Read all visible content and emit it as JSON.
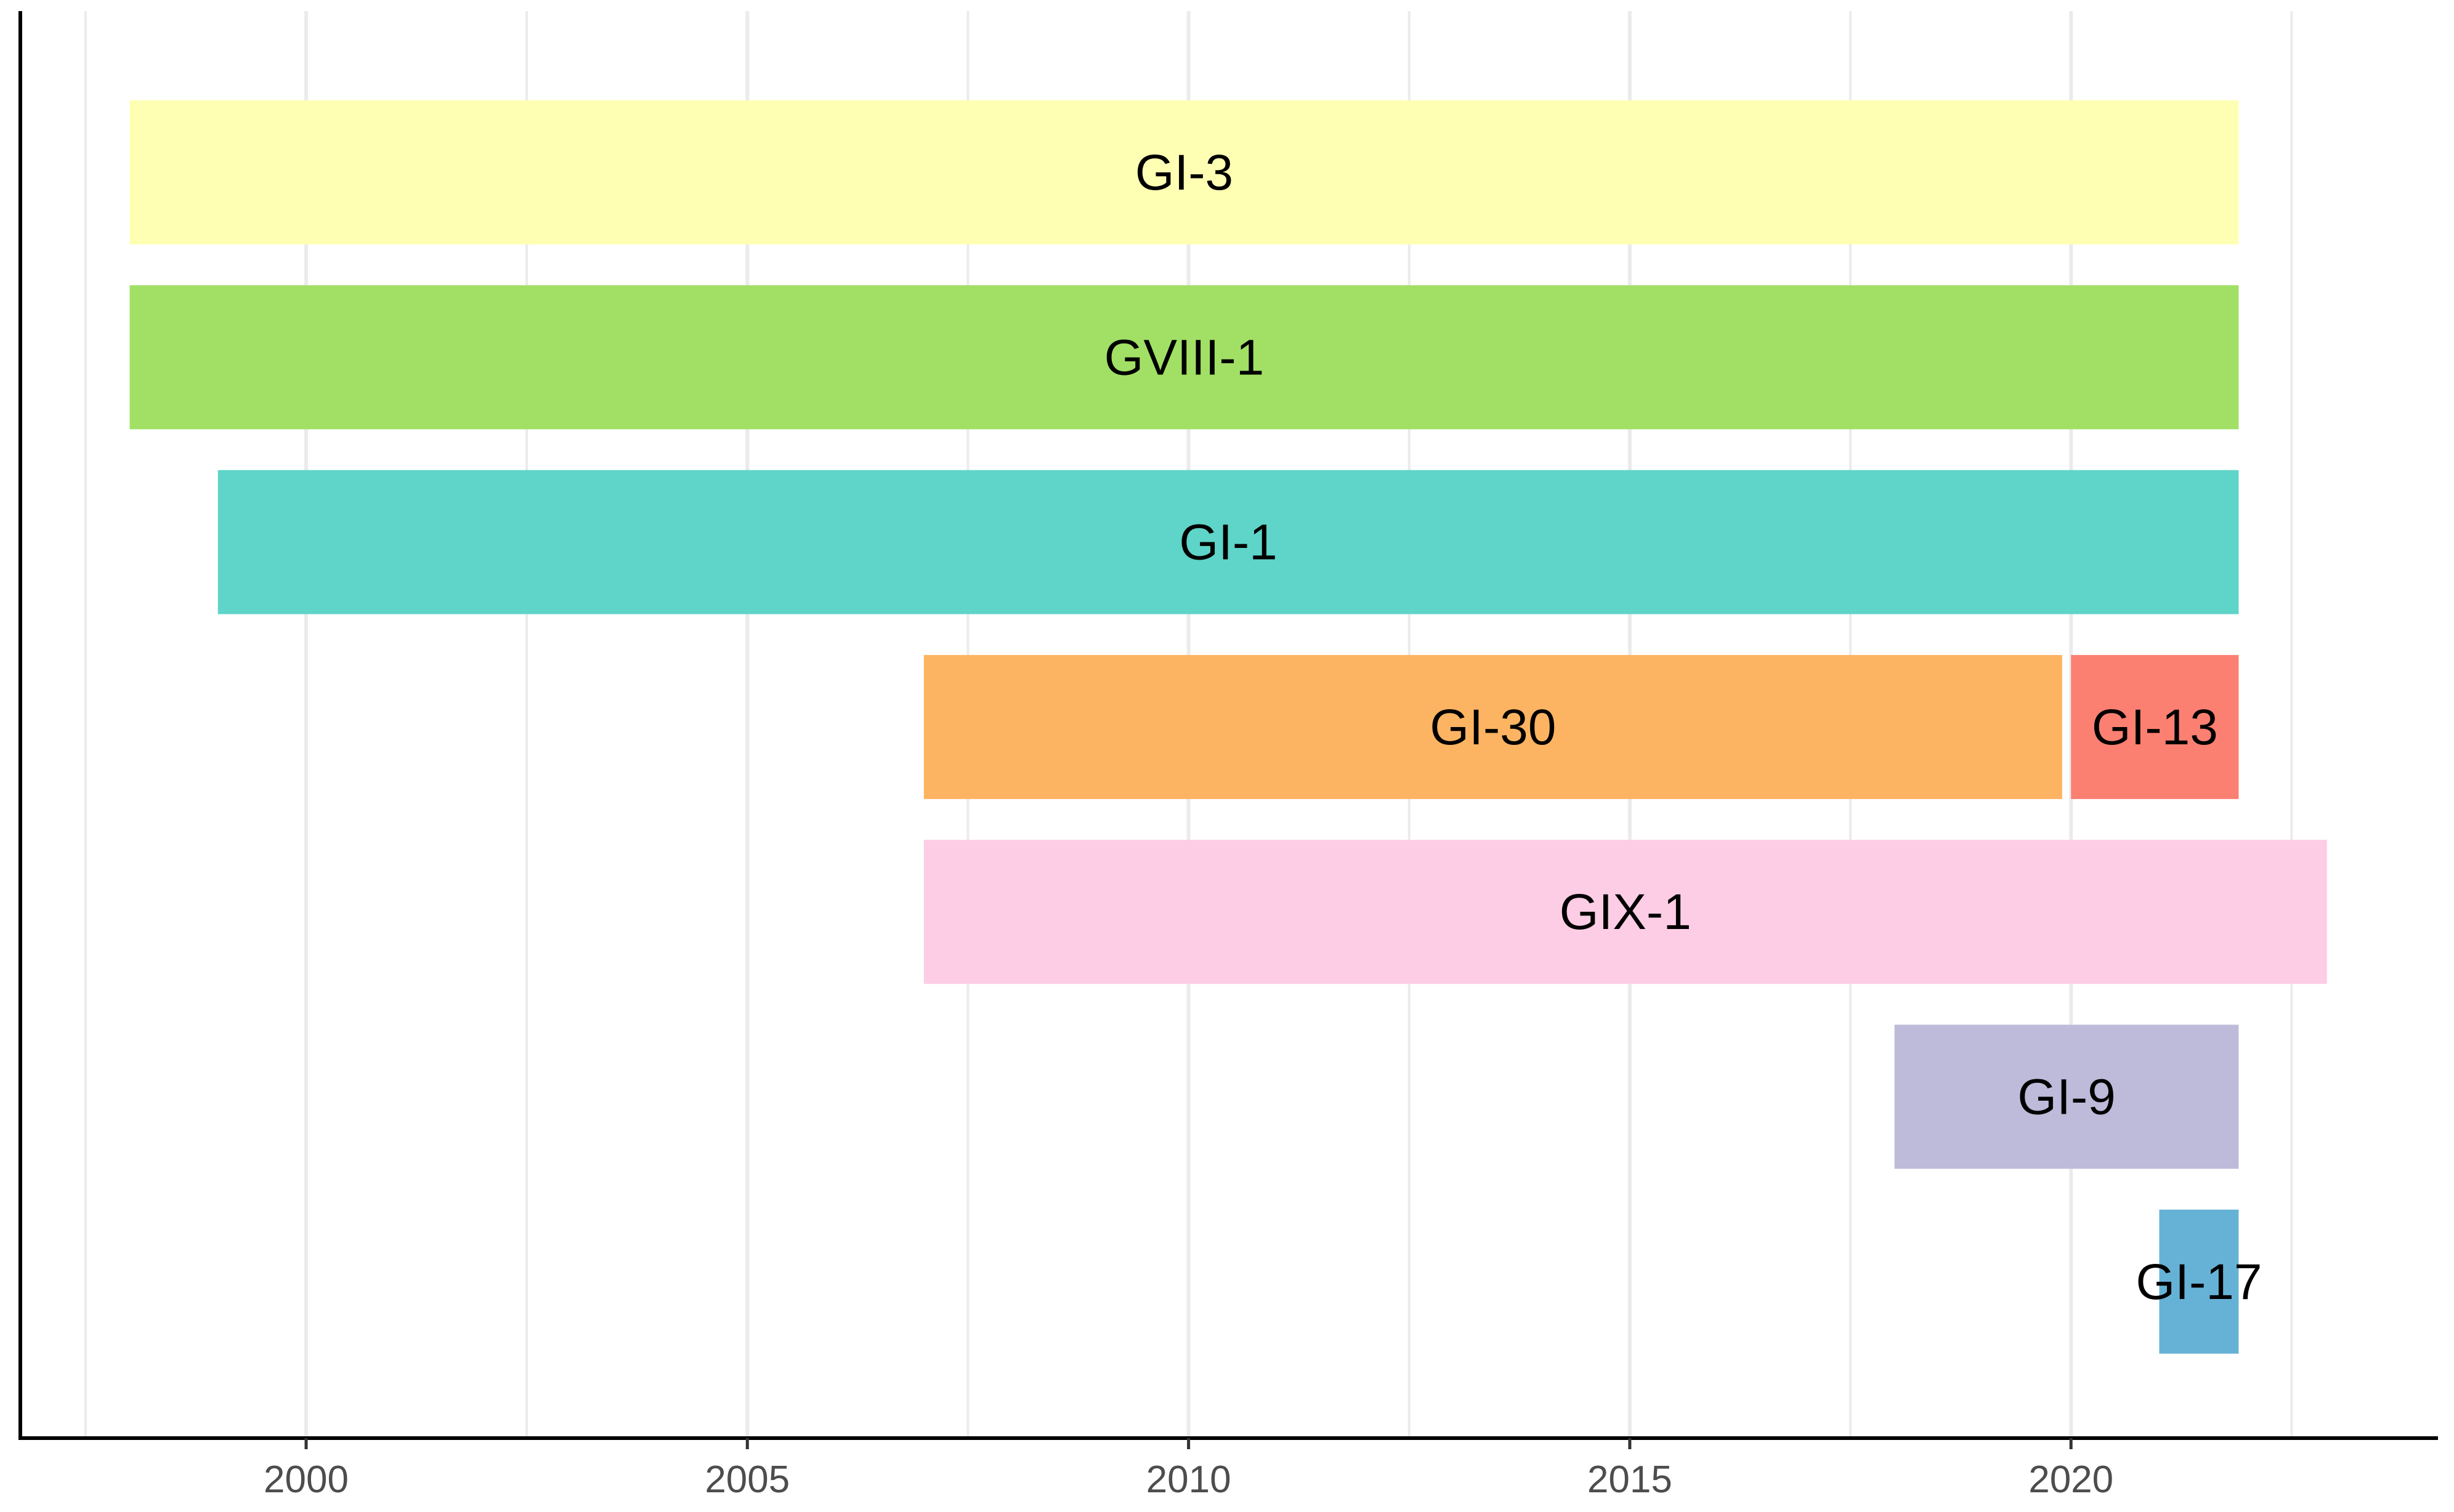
{
  "chart_data": {
    "type": "bar",
    "orientation": "horizontal",
    "title": "",
    "xlabel": "",
    "ylabel": "",
    "xlim": [
      1997.5,
      2024.2
    ],
    "x_ticks": [
      2000,
      2005,
      2010,
      2015,
      2020
    ],
    "x_tick_labels": [
      "2000",
      "2005",
      "2010",
      "2015",
      "2020"
    ],
    "grid": true,
    "legend": "none",
    "rows": [
      {
        "segments": [
          {
            "label": "GI-3",
            "start": 1998.0,
            "end": 2021.9,
            "color": "#FFFFB3"
          }
        ]
      },
      {
        "segments": [
          {
            "label": "GVIII-1",
            "start": 1998.0,
            "end": 2021.9,
            "color": "#A1E065"
          }
        ]
      },
      {
        "segments": [
          {
            "label": "GI-1",
            "start": 1999.0,
            "end": 2021.9,
            "color": "#5FD4C8"
          }
        ]
      },
      {
        "segments": [
          {
            "label": "GI-30",
            "start": 2007.0,
            "end": 2019.9,
            "color": "#FDB462"
          },
          {
            "label": "GI-13",
            "start": 2020.0,
            "end": 2021.9,
            "color": "#FB8072"
          }
        ]
      },
      {
        "segments": [
          {
            "label": "GIX-1",
            "start": 2007.0,
            "end": 2022.9,
            "color": "#FCCDE5"
          }
        ]
      },
      {
        "segments": [
          {
            "label": "GI-9",
            "start": 2018.0,
            "end": 2021.9,
            "color": "#BEBADA"
          }
        ]
      },
      {
        "segments": [
          {
            "label": "GI-17",
            "start": 2021.0,
            "end": 2021.9,
            "color": "#66B2D6"
          }
        ]
      }
    ]
  }
}
